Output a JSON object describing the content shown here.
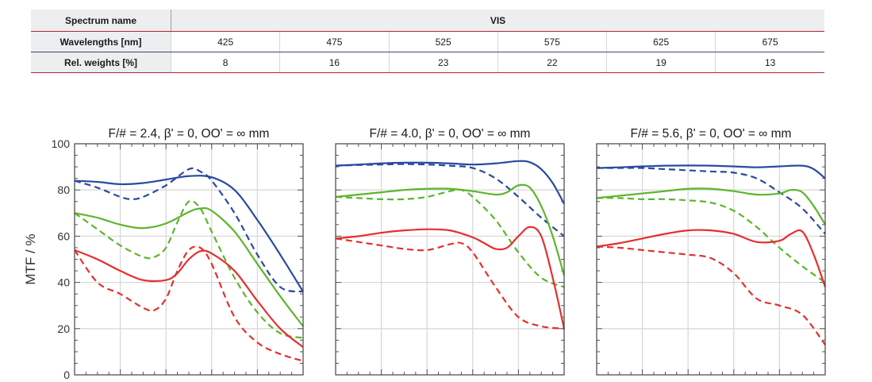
{
  "spectrum_table": {
    "header_label": "Spectrum name",
    "header_value": "VIS",
    "wavelengths_label": "Wavelengths [nm]",
    "wavelengths": [
      "425",
      "475",
      "525",
      "575",
      "625",
      "675"
    ],
    "weights_label": "Rel. weights [%]",
    "weights": [
      "8",
      "16",
      "23",
      "22",
      "19",
      "13"
    ]
  },
  "chart_data": [
    {
      "type": "line",
      "title": "F/# = 2.4, β' = 0, OO' = ∞ mm",
      "ylabel": "MTF / %",
      "ylim": [
        0,
        100
      ],
      "yticks": [
        "0",
        "20",
        "40",
        "60",
        "80",
        "100"
      ],
      "xlim": [
        0,
        1
      ],
      "grid": true,
      "series": [
        {
          "color": "#2b4aa0",
          "dash": false,
          "x": [
            0,
            0.1,
            0.2,
            0.3,
            0.4,
            0.5,
            0.6,
            0.7,
            0.8,
            0.9,
            1.0
          ],
          "y": [
            84,
            83.5,
            82.5,
            83,
            84.5,
            86,
            85.5,
            80,
            67,
            52,
            36
          ]
        },
        {
          "color": "#2b4aa0",
          "dash": true,
          "x": [
            0,
            0.1,
            0.2,
            0.25,
            0.3,
            0.4,
            0.5,
            0.55,
            0.6,
            0.7,
            0.8,
            0.9,
            1.0
          ],
          "y": [
            84,
            81,
            77,
            76,
            77,
            82,
            89,
            88,
            84,
            70,
            52,
            38,
            36
          ]
        },
        {
          "color": "#5db52b",
          "dash": false,
          "x": [
            0,
            0.1,
            0.2,
            0.3,
            0.4,
            0.5,
            0.55,
            0.6,
            0.7,
            0.8,
            0.9,
            1.0
          ],
          "y": [
            70,
            68,
            65,
            63.5,
            65.5,
            70.5,
            72,
            71,
            62,
            48,
            34,
            21
          ]
        },
        {
          "color": "#5db52b",
          "dash": true,
          "x": [
            0,
            0.1,
            0.2,
            0.3,
            0.35,
            0.4,
            0.45,
            0.5,
            0.55,
            0.6,
            0.7,
            0.8,
            0.9,
            1.0
          ],
          "y": [
            70,
            63,
            56,
            51,
            51,
            55,
            66,
            75,
            72,
            62,
            42,
            27,
            18,
            16
          ]
        },
        {
          "color": "#e52f2f",
          "dash": false,
          "x": [
            0,
            0.1,
            0.2,
            0.3,
            0.4,
            0.45,
            0.5,
            0.55,
            0.6,
            0.7,
            0.8,
            0.9,
            1.0
          ],
          "y": [
            54,
            50,
            45,
            41,
            41,
            44,
            50,
            53.5,
            52.5,
            45,
            32,
            20,
            12
          ]
        },
        {
          "color": "#e52f2f",
          "dash": true,
          "x": [
            0,
            0.1,
            0.2,
            0.3,
            0.35,
            0.4,
            0.45,
            0.5,
            0.55,
            0.6,
            0.7,
            0.8,
            0.9,
            1.0
          ],
          "y": [
            54,
            40,
            35,
            29,
            28,
            33,
            45,
            54,
            55,
            48,
            25,
            14,
            9,
            6
          ]
        }
      ]
    },
    {
      "type": "line",
      "title": "F/# = 4.0, β' = 0, OO' = ∞ mm",
      "ylim": [
        0,
        100
      ],
      "xlim": [
        0,
        1
      ],
      "grid": true,
      "series": [
        {
          "color": "#2b4aa0",
          "dash": false,
          "x": [
            0,
            0.1,
            0.2,
            0.3,
            0.4,
            0.5,
            0.6,
            0.7,
            0.8,
            0.85,
            0.9,
            0.95,
            1.0
          ],
          "y": [
            90.5,
            91,
            91.5,
            91.8,
            91.8,
            91.5,
            91,
            91.5,
            92.5,
            92,
            89,
            83,
            74
          ]
        },
        {
          "color": "#2b4aa0",
          "dash": true,
          "x": [
            0,
            0.1,
            0.2,
            0.3,
            0.4,
            0.5,
            0.6,
            0.7,
            0.8,
            0.9,
            1.0
          ],
          "y": [
            90.5,
            90.8,
            91,
            91.2,
            91,
            90.5,
            89.5,
            85,
            77,
            68,
            60
          ]
        },
        {
          "color": "#5db52b",
          "dash": false,
          "x": [
            0,
            0.1,
            0.2,
            0.3,
            0.4,
            0.5,
            0.6,
            0.7,
            0.75,
            0.8,
            0.85,
            0.9,
            0.95,
            1.0
          ],
          "y": [
            77,
            78,
            79,
            80,
            80.5,
            80.5,
            79.5,
            78,
            79,
            82,
            81,
            73,
            60,
            43
          ]
        },
        {
          "color": "#5db52b",
          "dash": true,
          "x": [
            0,
            0.1,
            0.2,
            0.3,
            0.4,
            0.5,
            0.55,
            0.6,
            0.7,
            0.8,
            0.9,
            1.0
          ],
          "y": [
            77,
            76.5,
            76,
            76,
            77,
            79.5,
            80,
            77,
            67,
            53,
            42,
            38
          ]
        },
        {
          "color": "#e52f2f",
          "dash": false,
          "x": [
            0,
            0.1,
            0.2,
            0.3,
            0.4,
            0.5,
            0.6,
            0.65,
            0.7,
            0.75,
            0.8,
            0.85,
            0.9,
            0.95,
            1.0
          ],
          "y": [
            59,
            60,
            61.5,
            62.5,
            63,
            62.5,
            59.5,
            57,
            54.5,
            55,
            60,
            64,
            60,
            42,
            20
          ]
        },
        {
          "color": "#e52f2f",
          "dash": true,
          "x": [
            0,
            0.1,
            0.2,
            0.3,
            0.4,
            0.5,
            0.55,
            0.6,
            0.7,
            0.8,
            0.9,
            1.0
          ],
          "y": [
            59,
            57.5,
            56,
            54.5,
            54,
            56.5,
            57,
            53,
            38,
            25,
            21,
            20
          ]
        }
      ]
    },
    {
      "type": "line",
      "title": "F/# = 5.6, β' = 0, OO' = ∞ mm",
      "ylim": [
        0,
        100
      ],
      "xlim": [
        0,
        1
      ],
      "grid": true,
      "series": [
        {
          "color": "#2b4aa0",
          "dash": false,
          "x": [
            0,
            0.1,
            0.2,
            0.3,
            0.4,
            0.5,
            0.6,
            0.7,
            0.8,
            0.9,
            0.95,
            1.0
          ],
          "y": [
            89.5,
            89.8,
            90.2,
            90.5,
            90.6,
            90.5,
            90.2,
            89.8,
            90.2,
            90.5,
            89,
            85
          ]
        },
        {
          "color": "#2b4aa0",
          "dash": true,
          "x": [
            0,
            0.1,
            0.2,
            0.3,
            0.4,
            0.5,
            0.6,
            0.7,
            0.8,
            0.9,
            1.0
          ],
          "y": [
            89.5,
            89.5,
            89.5,
            89,
            88.5,
            88,
            87.5,
            85,
            79,
            72,
            61
          ]
        },
        {
          "color": "#5db52b",
          "dash": false,
          "x": [
            0,
            0.1,
            0.2,
            0.3,
            0.4,
            0.5,
            0.6,
            0.7,
            0.8,
            0.85,
            0.9,
            0.95,
            1.0
          ],
          "y": [
            76.5,
            77.5,
            78.5,
            79.5,
            80.5,
            80.5,
            79.5,
            78,
            78.5,
            80,
            79,
            73,
            65
          ]
        },
        {
          "color": "#5db52b",
          "dash": true,
          "x": [
            0,
            0.1,
            0.2,
            0.3,
            0.4,
            0.5,
            0.6,
            0.7,
            0.8,
            0.9,
            1.0
          ],
          "y": [
            76.5,
            76.5,
            76,
            76,
            75.5,
            74.5,
            71,
            64,
            55,
            47,
            40
          ]
        },
        {
          "color": "#e52f2f",
          "dash": false,
          "x": [
            0,
            0.1,
            0.2,
            0.3,
            0.4,
            0.5,
            0.6,
            0.7,
            0.8,
            0.85,
            0.9,
            0.95,
            1.0
          ],
          "y": [
            55.5,
            57,
            59,
            61,
            62.5,
            62.5,
            61,
            57.5,
            58,
            61,
            62,
            52,
            38
          ]
        },
        {
          "color": "#e52f2f",
          "dash": true,
          "x": [
            0,
            0.1,
            0.2,
            0.3,
            0.4,
            0.5,
            0.6,
            0.7,
            0.8,
            0.9,
            1.0
          ],
          "y": [
            55.5,
            55,
            54,
            53,
            52,
            50.5,
            44,
            33,
            30,
            26,
            13
          ]
        }
      ]
    }
  ]
}
